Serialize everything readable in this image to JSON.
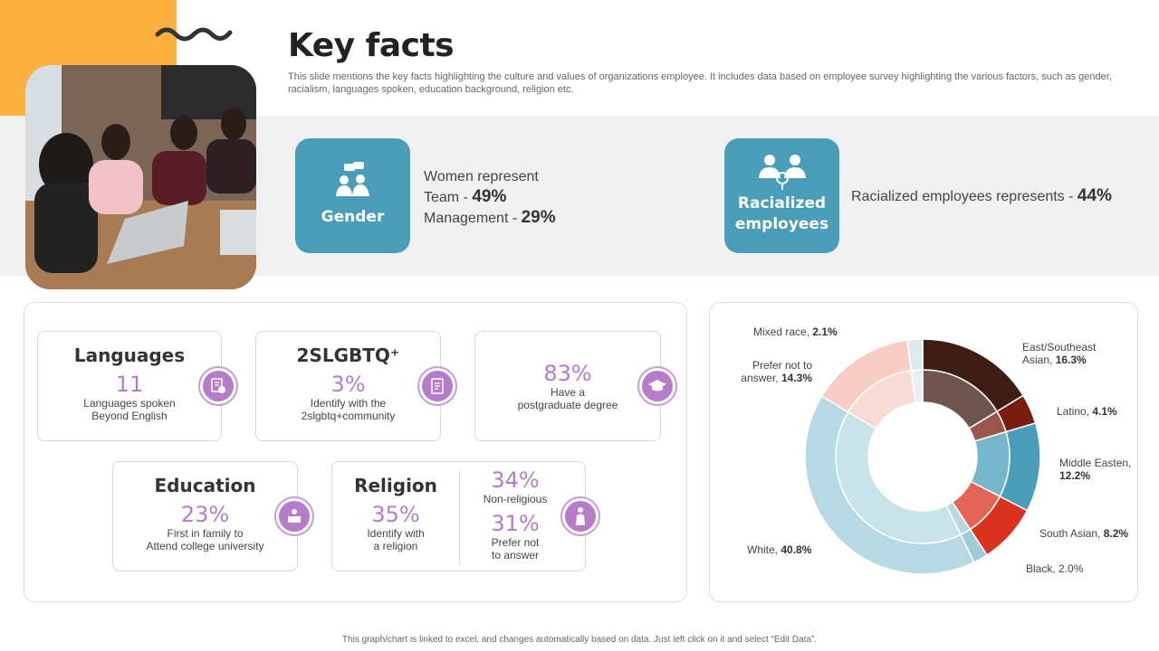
{
  "header": {
    "title": "Key facts",
    "subtitle": "This slide mentions the key facts highlighting the culture and values of organizations employee. It includes data based on employee survey highlighting the various factors, such as gender, racialism, languages spoken, education background, religion etc."
  },
  "gender": {
    "label": "Gender",
    "line1": "Women represent",
    "team_label": "Team - ",
    "team_value": "49%",
    "mgmt_label": "Management - ",
    "mgmt_value": "29%"
  },
  "racialized": {
    "label_line1": "Racialized",
    "label_line2": "employees",
    "text": "Racialized employees represents - ",
    "value": "44%"
  },
  "facts": {
    "languages": {
      "title": "Languages",
      "value": "11",
      "desc1": "Languages spoken",
      "desc2": "Beyond English"
    },
    "lgbtq": {
      "title": "2SLGBTQ⁺",
      "value": "3%",
      "desc1": "Identify with the",
      "desc2": "2slgbtq+community"
    },
    "degree": {
      "value": "83%",
      "desc1": "Have a",
      "desc2": "postgraduate degree"
    },
    "education": {
      "title": "Education",
      "value": "23%",
      "desc1": "First in family to",
      "desc2": "Attend college university"
    },
    "religion": {
      "title": "Religion",
      "value": "35%",
      "desc1": "Identify with",
      "desc2": "a religion",
      "nonrel_value": "34%",
      "nonrel_desc": "Non-religious",
      "prefer_value": "31%",
      "prefer_desc1": "Prefer not",
      "prefer_desc2": "to answer"
    }
  },
  "chart_data": {
    "type": "pie",
    "title": "",
    "segments": [
      {
        "name": "East/Southeast Asian",
        "value": 16.3,
        "label1": "East/Southeast",
        "label2": "Asian, ",
        "pct": "16.3%",
        "color": "#3d1d14"
      },
      {
        "name": "Latino",
        "value": 4.1,
        "label1": "Latino, ",
        "pct": "4.1%",
        "color": "#7a1c10"
      },
      {
        "name": "Middle Eastern",
        "value": 12.2,
        "label1": "Middle Easten,",
        "pct": "12.2%",
        "color": "#4a9db8"
      },
      {
        "name": "South Asian",
        "value": 8.2,
        "label1": "South Asian, ",
        "pct": "8.2%",
        "color": "#d9321f"
      },
      {
        "name": "Black",
        "value": 2.0,
        "label1": "Black, 2.0%",
        "color": "#9fcad8"
      },
      {
        "name": "White",
        "value": 40.8,
        "label1": "White, ",
        "pct": "40.8%",
        "color": "#b6d9e3"
      },
      {
        "name": "Prefer not to answer",
        "value": 14.3,
        "label1": "Prefer not to",
        "label2": "answer, ",
        "pct": "14.3%",
        "color": "#f7cdc6"
      },
      {
        "name": "Mixed race",
        "value": 2.1,
        "label1": "Mixed race, ",
        "pct": "2.1%",
        "color": "#dfeaf0"
      }
    ]
  },
  "footer": {
    "text": "This graph/chart is linked to excel, and changes automatically based on data. Just left click on it and select “Edit Data”."
  }
}
